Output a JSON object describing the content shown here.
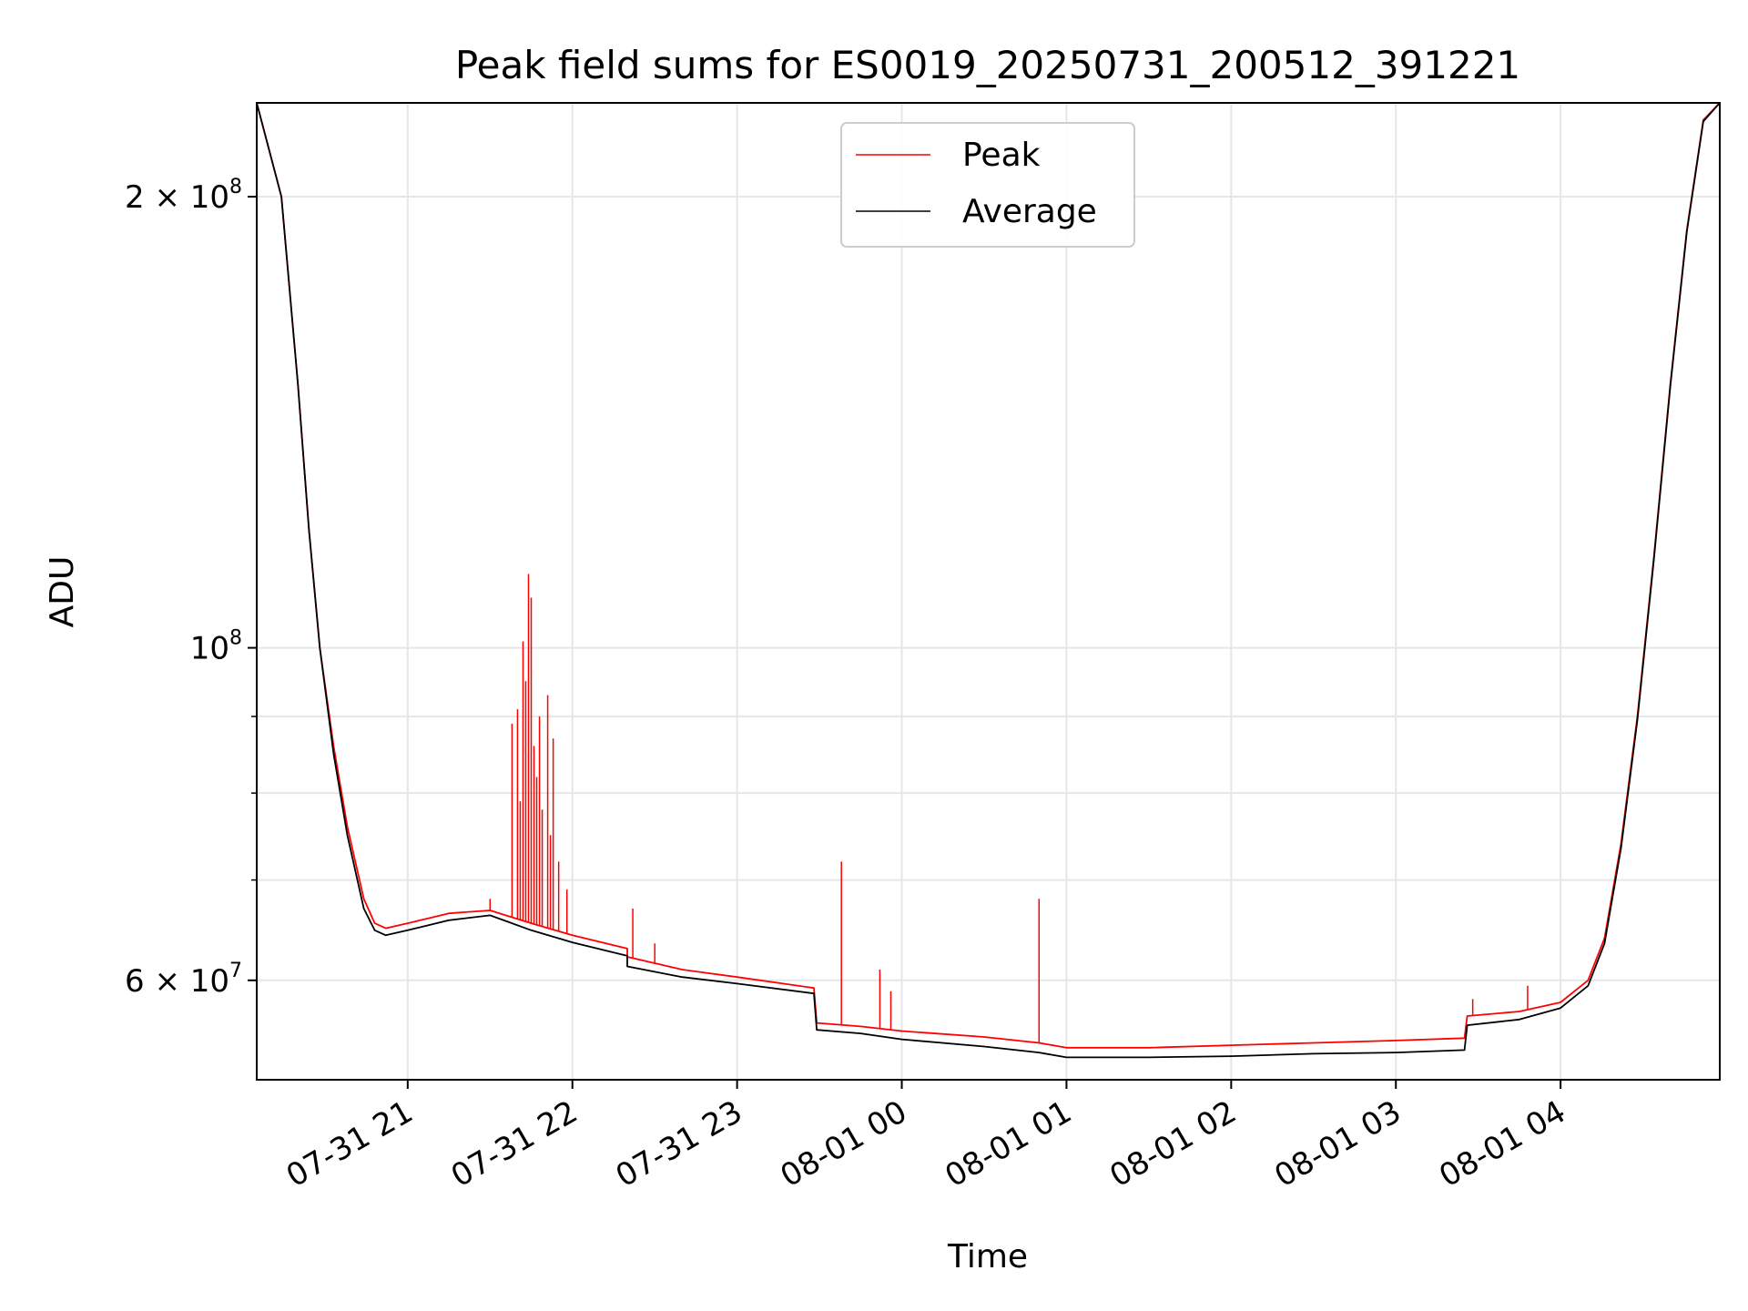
{
  "chart_data": {
    "type": "line",
    "title": "Peak field sums for ES0019_20250731_200512_391221",
    "xlabel": "Time",
    "ylabel": "ADU",
    "yscale": "log",
    "ylim": [
      51500000,
      231000000
    ],
    "xlim": [
      "2025-07-31 20:05",
      "2025-08-01 04:58"
    ],
    "grid": true,
    "legend_position": "top-center",
    "x_ticks": [
      "07-31 21",
      "07-31 22",
      "07-31 23",
      "08-01 00",
      "08-01 01",
      "08-01 02",
      "08-01 03",
      "08-01 04"
    ],
    "x_tick_times": [
      "2025-07-31 21:00",
      "2025-07-31 22:00",
      "2025-07-31 23:00",
      "2025-08-01 00:00",
      "2025-08-01 01:00",
      "2025-08-01 02:00",
      "2025-08-01 03:00",
      "2025-08-01 04:00"
    ],
    "y_ticks": [
      {
        "value": 200000000,
        "mantissa": "2",
        "exp": "8"
      },
      {
        "value": 100000000,
        "mantissa": "",
        "exp": "8"
      },
      {
        "value": 60000000,
        "mantissa": "6",
        "exp": "7"
      }
    ],
    "y_minor_gridlines": [
      70000000,
      80000000,
      90000000
    ],
    "series": [
      {
        "name": "Peak",
        "color": "#ff0000",
        "values_time": [
          "2025-07-31 20:05",
          "2025-07-31 20:14",
          "2025-07-31 20:20",
          "2025-07-31 20:24",
          "2025-07-31 20:28",
          "2025-07-31 20:33",
          "2025-07-31 20:38",
          "2025-07-31 20:44",
          "2025-07-31 20:48",
          "2025-07-31 20:52",
          "2025-07-31 21:00",
          "2025-07-31 21:15",
          "2025-07-31 21:30",
          "2025-07-31 21:45",
          "2025-07-31 22:00",
          "2025-07-31 22:20",
          "2025-07-31 22:20",
          "2025-07-31 22:40",
          "2025-07-31 23:00",
          "2025-07-31 23:28",
          "2025-07-31 23:29",
          "2025-07-31 23:45",
          "2025-08-01 00:00",
          "2025-08-01 00:30",
          "2025-08-01 00:50",
          "2025-08-01 01:00",
          "2025-08-01 01:30",
          "2025-08-01 02:00",
          "2025-08-01 02:30",
          "2025-08-01 03:00",
          "2025-08-01 03:25",
          "2025-08-01 03:26",
          "2025-08-01 03:45",
          "2025-08-01 04:00",
          "2025-08-01 04:10",
          "2025-08-01 04:16",
          "2025-08-01 04:22",
          "2025-08-01 04:28",
          "2025-08-01 04:34",
          "2025-08-01 04:40",
          "2025-08-01 04:46",
          "2025-08-01 04:52",
          "2025-08-01 04:58"
        ],
        "values": [
          231000000,
          200000000,
          150000000,
          120000000,
          100000000,
          86000000,
          76000000,
          68000000,
          65500000,
          65000000,
          65500000,
          66500000,
          66800000,
          65500000,
          64300000,
          63000000,
          62200000,
          61000000,
          60300000,
          59300000,
          56200000,
          55900000,
          55500000,
          55000000,
          54500000,
          54100000,
          54100000,
          54300000,
          54500000,
          54700000,
          54900000,
          56800000,
          57200000,
          58000000,
          60000000,
          64000000,
          74000000,
          90000000,
          115000000,
          150000000,
          190000000,
          225000000,
          231000000
        ],
        "spikes": [
          {
            "time": "2025-07-31 21:30",
            "value": 68000000
          },
          {
            "time": "2025-07-31 21:38",
            "value": 89000000
          },
          {
            "time": "2025-07-31 21:40",
            "value": 91000000
          },
          {
            "time": "2025-07-31 21:41",
            "value": 79000000
          },
          {
            "time": "2025-07-31 21:42",
            "value": 101000000
          },
          {
            "time": "2025-07-31 21:43",
            "value": 95000000
          },
          {
            "time": "2025-07-31 21:44",
            "value": 112000000
          },
          {
            "time": "2025-07-31 21:45",
            "value": 108000000
          },
          {
            "time": "2025-07-31 21:46",
            "value": 86000000
          },
          {
            "time": "2025-07-31 21:47",
            "value": 82000000
          },
          {
            "time": "2025-07-31 21:48",
            "value": 90000000
          },
          {
            "time": "2025-07-31 21:49",
            "value": 78000000
          },
          {
            "time": "2025-07-31 21:51",
            "value": 93000000
          },
          {
            "time": "2025-07-31 21:52",
            "value": 75000000
          },
          {
            "time": "2025-07-31 21:53",
            "value": 87000000
          },
          {
            "time": "2025-07-31 21:55",
            "value": 72000000
          },
          {
            "time": "2025-07-31 21:58",
            "value": 69000000
          },
          {
            "time": "2025-07-31 22:22",
            "value": 67000000
          },
          {
            "time": "2025-07-31 22:30",
            "value": 63500000
          },
          {
            "time": "2025-07-31 23:38",
            "value": 72000000
          },
          {
            "time": "2025-07-31 23:52",
            "value": 61000000
          },
          {
            "time": "2025-07-31 23:56",
            "value": 59000000
          },
          {
            "time": "2025-08-01 00:50",
            "value": 68000000
          },
          {
            "time": "2025-08-01 03:28",
            "value": 58300000
          },
          {
            "time": "2025-08-01 03:48",
            "value": 59500000
          }
        ]
      },
      {
        "name": "Average",
        "color": "#000000",
        "values_time": [
          "2025-07-31 20:05",
          "2025-07-31 20:14",
          "2025-07-31 20:20",
          "2025-07-31 20:24",
          "2025-07-31 20:28",
          "2025-07-31 20:33",
          "2025-07-31 20:38",
          "2025-07-31 20:44",
          "2025-07-31 20:48",
          "2025-07-31 20:52",
          "2025-07-31 21:00",
          "2025-07-31 21:15",
          "2025-07-31 21:30",
          "2025-07-31 21:45",
          "2025-07-31 22:00",
          "2025-07-31 22:20",
          "2025-07-31 22:20",
          "2025-07-31 22:40",
          "2025-07-31 23:00",
          "2025-07-31 23:28",
          "2025-07-31 23:29",
          "2025-07-31 23:45",
          "2025-08-01 00:00",
          "2025-08-01 00:30",
          "2025-08-01 00:50",
          "2025-08-01 01:00",
          "2025-08-01 01:30",
          "2025-08-01 02:00",
          "2025-08-01 02:30",
          "2025-08-01 03:00",
          "2025-08-01 03:25",
          "2025-08-01 03:26",
          "2025-08-01 03:45",
          "2025-08-01 04:00",
          "2025-08-01 04:10",
          "2025-08-01 04:16",
          "2025-08-01 04:22",
          "2025-08-01 04:28",
          "2025-08-01 04:34",
          "2025-08-01 04:40",
          "2025-08-01 04:46",
          "2025-08-01 04:52",
          "2025-08-01 04:58"
        ],
        "values": [
          231000000,
          200000000,
          150000000,
          120000000,
          100000000,
          85000000,
          75000000,
          67000000,
          64800000,
          64300000,
          64800000,
          65800000,
          66300000,
          64800000,
          63600000,
          62300000,
          61300000,
          60300000,
          59700000,
          58800000,
          55600000,
          55300000,
          54800000,
          54200000,
          53700000,
          53300000,
          53300000,
          53400000,
          53600000,
          53700000,
          53900000,
          56000000,
          56500000,
          57500000,
          59500000,
          63500000,
          73500000,
          89500000,
          114500000,
          149500000,
          189500000,
          224500000,
          231000000
        ]
      }
    ]
  }
}
